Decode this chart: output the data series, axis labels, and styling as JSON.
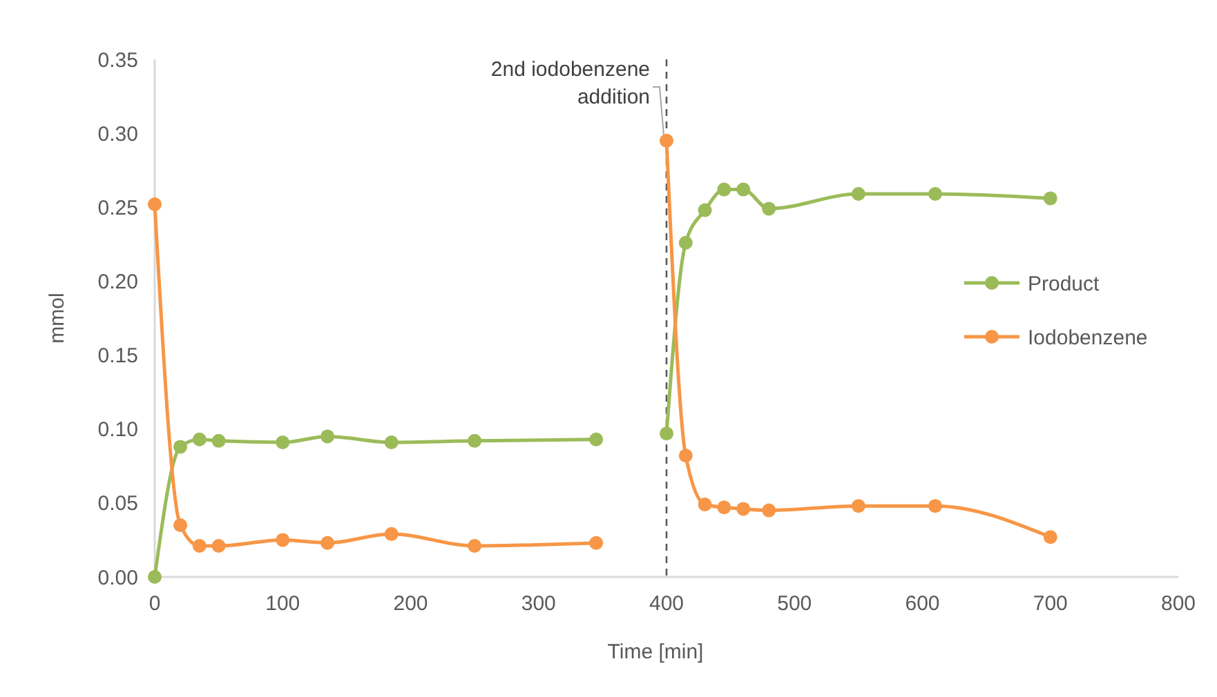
{
  "chart_data": {
    "type": "line",
    "xlabel": "Time [min]",
    "ylabel": "mmol",
    "xlim": [
      0,
      800
    ],
    "xticks": [
      0,
      100,
      200,
      300,
      400,
      500,
      600,
      700,
      800
    ],
    "ylim": [
      0,
      0.35
    ],
    "yticks": [
      {
        "value": 0,
        "label": "0.00"
      },
      {
        "value": 0.05,
        "label": "0.05"
      },
      {
        "value": 0.1,
        "label": "0.10"
      },
      {
        "value": 0.15,
        "label": "0.15"
      },
      {
        "value": 0.2,
        "label": "0.20"
      },
      {
        "value": 0.25,
        "label": "0.25"
      },
      {
        "value": 0.3,
        "label": "0.30"
      },
      {
        "value": 0.35,
        "label": "0.35"
      }
    ],
    "x": [
      0,
      20,
      35,
      50,
      100,
      135,
      185,
      250,
      345,
      375,
      400,
      415,
      430,
      445,
      460,
      480,
      550,
      610,
      700
    ],
    "series": [
      {
        "name": "Product",
        "color": "#9bbb59",
        "values": [
          0,
          0.088,
          0.093,
          0.092,
          0.091,
          0.095,
          0.091,
          0.092,
          0.093,
          null,
          0.097,
          0.226,
          0.248,
          0.262,
          0.262,
          0.249,
          0.259,
          0.259,
          0.256
        ]
      },
      {
        "name": "Iodobenzene",
        "color": "#f79646",
        "values": [
          0.252,
          0.035,
          0.021,
          0.021,
          0.025,
          0.023,
          0.029,
          0.021,
          0.023,
          null,
          0.295,
          0.082,
          0.049,
          0.047,
          0.046,
          0.045,
          0.048,
          0.048,
          0.027
        ]
      }
    ],
    "ref_lines": [
      {
        "axis": "x",
        "value": 400,
        "label": "2nd iodobenzene addition",
        "color": "#595959",
        "line_style": "dashed"
      }
    ],
    "marker": "circle",
    "line_style": "solid",
    "grid": false,
    "legend": "right"
  }
}
